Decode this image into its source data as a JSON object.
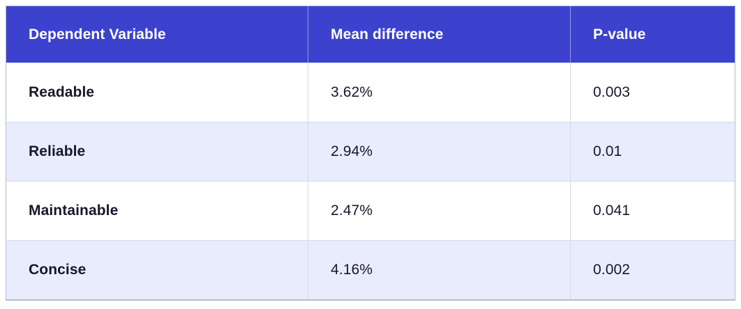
{
  "table": {
    "columns": [
      {
        "label": "Dependent Variable"
      },
      {
        "label": "Mean difference"
      },
      {
        "label": "P-value"
      }
    ],
    "rows": [
      {
        "variable": "Readable",
        "mean_difference": "3.62%",
        "p_value": "0.003"
      },
      {
        "variable": "Reliable",
        "mean_difference": "2.94%",
        "p_value": "0.01"
      },
      {
        "variable": "Maintainable",
        "mean_difference": "2.47%",
        "p_value": "0.041"
      },
      {
        "variable": "Concise",
        "mean_difference": "4.16%",
        "p_value": "0.002"
      }
    ]
  },
  "colors": {
    "header_bg": "#3c42cd",
    "header_text": "#ffffff",
    "row_bg": "#ffffff",
    "row_alt_bg": "#e9ecfa",
    "body_text": "#16182c",
    "inner_border": "#d6d9ef",
    "outer_border": "#b6bad4"
  },
  "chart_data": {
    "type": "table",
    "title": "",
    "columns": [
      "Dependent Variable",
      "Mean difference",
      "P-value"
    ],
    "categories": [
      "Readable",
      "Reliable",
      "Maintainable",
      "Concise"
    ],
    "series": [
      {
        "name": "Mean difference (%)",
        "values": [
          3.62,
          2.94,
          2.47,
          4.16
        ]
      },
      {
        "name": "P-value",
        "values": [
          0.003,
          0.01,
          0.041,
          0.002
        ]
      }
    ]
  }
}
